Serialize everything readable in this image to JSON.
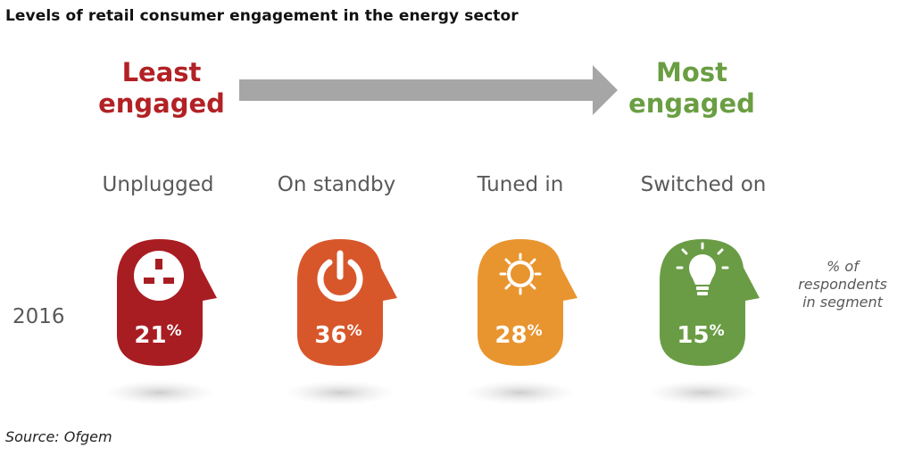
{
  "title": "Levels of retail consumer engagement in the energy sector",
  "scale": {
    "least": {
      "line1": "Least",
      "line2": "engaged",
      "color": "#b22125"
    },
    "most": {
      "line1": "Most",
      "line2": "engaged",
      "color": "#6a9e42"
    }
  },
  "year_label": "2016",
  "note": {
    "line1": "% of",
    "line2": "respondents",
    "line3": "in segment"
  },
  "source": "Source: Ofgem",
  "chart_data": {
    "type": "table",
    "categories": [
      "Unplugged",
      "On standby",
      "Tuned in",
      "Switched on"
    ],
    "series": [
      {
        "name": "2016",
        "values": [
          21,
          36,
          28,
          15
        ]
      }
    ],
    "unit": "%",
    "colors": [
      "#a81d22",
      "#d7572b",
      "#e8952f",
      "#6a9c45"
    ],
    "icons": [
      "plug-socket-icon",
      "power-icon",
      "sun-icon",
      "lightbulb-icon"
    ]
  }
}
